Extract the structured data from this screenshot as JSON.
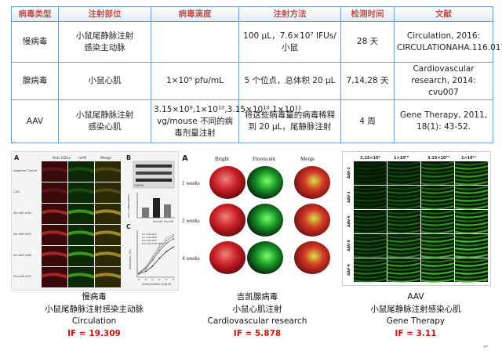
{
  "table": {
    "headers": [
      "病毒类型",
      "注射部位",
      "病毒滴度",
      "注射方法",
      "检测时间",
      "文献"
    ],
    "rows": [
      {
        "virus": "慢病毒",
        "site": [
          "小鼠尾静脉注射",
          "感染主动脉"
        ],
        "titer": "",
        "method": "100 μL，7.6×10⁷ IFUs/小鼠",
        "time": "28 天",
        "ref": "Circulation, 2016: CIRCULATIONAHA.116.017949"
      },
      {
        "virus": "腺病毒",
        "site": [
          "小鼠心肌"
        ],
        "titer": "1×10⁹ pfu/mL",
        "method": "5 个位点，总体积 20 μL",
        "time": "7,14,28 天",
        "ref": "Cardiovascular research, 2014: cvu007"
      },
      {
        "virus": "AAV",
        "site": [
          "小鼠尾静脉注射",
          "感染心肌"
        ],
        "titer": "3.15×10⁹,1×10¹⁰,3.15×10¹⁰,1×10¹¹ vg/mouse 不同的病毒剂量注射",
        "method": "将这些病毒量的病毒稀释到 20 μL，尾静脉注射",
        "time": "4 周",
        "ref": "Gene Therapy, 2011, 18(1): 43-52."
      }
    ]
  },
  "panel1": {
    "col_headers": [
      "Anti-CD1a",
      "mAP",
      "Merge"
    ],
    "row_labels": [
      "Negative Control",
      "CXA",
      "Scr-miR mDC",
      "Scr-miR mFC",
      "Scr-miR mDC",
      "Pre-miR mFC"
    ],
    "blot_label": "B",
    "blot_bands": [
      "GAPDH",
      "Scr",
      "pre-miR"
    ],
    "bar_chart": {
      "type": "bar",
      "ylabel": "AAT1 mRNA/GAPDH",
      "categories": [
        "",
        "Scr-miR",
        "Pre-miR"
      ],
      "values": [
        0.52,
        1.0,
        0.68
      ]
    },
    "line_label": "C",
    "line_chart": {
      "type": "line",
      "xlabel": "Acetylcholine (Log M)",
      "ylabel": "Relaxation (%)",
      "x": [
        -9,
        -8,
        -7,
        -6,
        -5,
        -4
      ],
      "series": [
        {
          "values": [
            96,
            90,
            78,
            60,
            45,
            35
          ]
        },
        {
          "values": [
            95,
            84,
            65,
            42,
            26,
            16
          ]
        },
        {
          "values": [
            94,
            82,
            60,
            36,
            20,
            10
          ]
        },
        {
          "values": [
            93,
            80,
            56,
            30,
            14,
            6
          ]
        }
      ],
      "legend_entries": [
        "Scr-miR+GFP",
        "Scr-miR+NO5",
        "Pre-miR+GFP",
        "Pre-miR+NO5 Mimic"
      ]
    }
  },
  "panel2": {
    "label": "A",
    "col_headers": [
      "Bright",
      "Florescent",
      "Merge"
    ],
    "row_labels": [
      "1 weeks",
      "2 weeks",
      "4 weeks"
    ]
  },
  "panel3": {
    "col_headers": [
      "3.15×10⁹",
      "1×10¹⁰",
      "3.15×10¹⁰",
      "1×10¹¹"
    ],
    "row_labels": [
      "AAV-2",
      "AAV-1",
      "AAV-6",
      "AAV-8",
      "AAV-9"
    ]
  },
  "captions": [
    {
      "name": "慢病毒",
      "site": "小鼠尾静脉注射感染主动脉",
      "journal": "Circulation",
      "if": "IF = 19.309"
    },
    {
      "name": "吉凯腺病毒",
      "site": "小鼠心肌注射",
      "journal": "Cardiovascular research",
      "if": "IF = 5.878"
    },
    {
      "name": "AAV",
      "site": "小鼠尾静脉注射感染心肌",
      "journal": "Gene Therapy",
      "if": "IF = 3.11"
    }
  ],
  "colors": {
    "header_text": "#c0504d",
    "border": "#6d9bd6",
    "if_text": "#d01010",
    "fluorescent": "#3fbf2a"
  }
}
